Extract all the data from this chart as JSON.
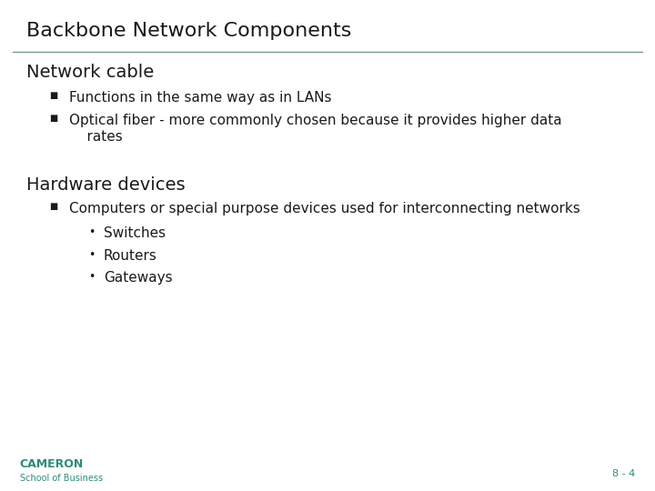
{
  "title": "Backbone Network Components",
  "title_color": "#1a1a1a",
  "title_fontsize": 16,
  "line_color": "#7a9a8a",
  "bg_color": "#ffffff",
  "section1_heading": "Network cable",
  "section1_heading_fontsize": 14,
  "section1_bullets": [
    "Functions in the same way as in LANs",
    "Optical fiber - more commonly chosen because it provides higher data\n    rates"
  ],
  "section2_heading": "Hardware devices",
  "section2_heading_fontsize": 14,
  "section2_bullet": "Computers or special purpose devices used for interconnecting networks",
  "section2_subbullets": [
    "Switches",
    "Routers",
    "Gateways"
  ],
  "bullet_fontsize": 11,
  "text_color": "#1a1a1a",
  "footer_left1": "CAMERON",
  "footer_left2": "School of Business",
  "footer_right": "8 - 4",
  "footer_color": "#2e8b7a",
  "footer_fontsize": 8
}
